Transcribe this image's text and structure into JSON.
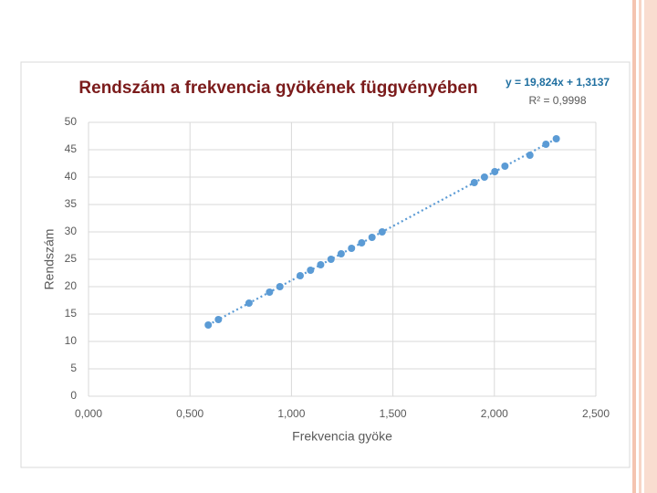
{
  "chart_data": {
    "type": "scatter",
    "title": "Rendszám a frekvencia gyökének függvényében",
    "x_label": "Frekvencia gyöke",
    "y_label": "Rendszám",
    "color": "#5b9bd5",
    "x": [
      0.59,
      0.64,
      0.791,
      0.892,
      0.943,
      1.043,
      1.094,
      1.144,
      1.195,
      1.245,
      1.296,
      1.346,
      1.397,
      1.447,
      1.901,
      1.951,
      2.002,
      2.052,
      2.175,
      2.254,
      2.305
    ],
    "values": [
      13,
      14,
      17,
      19,
      20,
      22,
      23,
      24,
      25,
      26,
      27,
      28,
      29,
      30,
      39,
      40,
      41,
      42,
      44,
      46,
      47
    ],
    "xlim": [
      0,
      2.5
    ],
    "ylim": [
      0,
      50
    ],
    "xticks": [
      {
        "value": 0,
        "label": "0,000"
      },
      {
        "value": 0.5,
        "label": "0,500"
      },
      {
        "value": 1,
        "label": "1,000"
      },
      {
        "value": 1.5,
        "label": "1,500"
      },
      {
        "value": 2,
        "label": "2,000"
      },
      {
        "value": 2.5,
        "label": "2,500"
      }
    ],
    "yticks": [
      0,
      5,
      10,
      15,
      20,
      25,
      30,
      35,
      40,
      45,
      50
    ],
    "grid": true,
    "trendline": {
      "slope": 19.824,
      "intercept": 1.3137,
      "label": "y = 19,824x + 1,3137",
      "r2_label": "R² = 0,9998"
    }
  }
}
